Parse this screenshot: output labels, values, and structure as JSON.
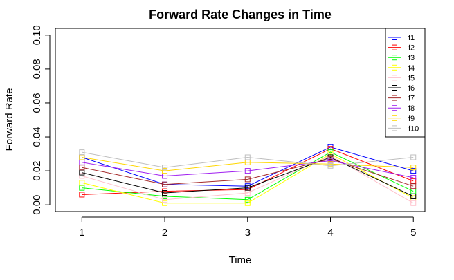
{
  "chart_data": {
    "type": "line",
    "title": "Forward Rate Changes in Time",
    "xlabel": "Time",
    "ylabel": "Forward Rate",
    "x": [
      1,
      2,
      3,
      4,
      5
    ],
    "xlim": [
      0.68,
      5.14
    ],
    "ylim": [
      -0.004,
      0.104
    ],
    "yticks": [
      "0.00",
      "0.02",
      "0.04",
      "0.06",
      "0.08",
      "0.10"
    ],
    "xticks": [
      "1",
      "2",
      "3",
      "4",
      "5"
    ],
    "grid": false,
    "legend_position": "top-right",
    "marker": "square-open",
    "series": [
      {
        "name": "f1",
        "color": "#0000ff",
        "values": [
          0.028,
          0.012,
          0.011,
          0.034,
          0.02
        ]
      },
      {
        "name": "f2",
        "color": "#ff0000",
        "values": [
          0.006,
          0.008,
          0.009,
          0.033,
          0.014
        ]
      },
      {
        "name": "f3",
        "color": "#00ff00",
        "values": [
          0.01,
          0.005,
          0.003,
          0.031,
          0.008
        ]
      },
      {
        "name": "f4",
        "color": "#ffff00",
        "values": [
          0.013,
          0.001,
          0.001,
          0.03,
          0.004
        ]
      },
      {
        "name": "f5",
        "color": "#ffc0cb",
        "values": [
          0.017,
          0.003,
          0.007,
          0.029,
          0.001
        ]
      },
      {
        "name": "f6",
        "color": "#000000",
        "values": [
          0.019,
          0.007,
          0.01,
          0.028,
          0.005
        ]
      },
      {
        "name": "f7",
        "color": "#a52a2a",
        "values": [
          0.022,
          0.012,
          0.015,
          0.027,
          0.011
        ]
      },
      {
        "name": "f8",
        "color": "#a020f0",
        "values": [
          0.025,
          0.017,
          0.02,
          0.026,
          0.016
        ]
      },
      {
        "name": "f9",
        "color": "#ffd700",
        "values": [
          0.028,
          0.02,
          0.025,
          0.024,
          0.022
        ]
      },
      {
        "name": "f10",
        "color": "#bebebe",
        "values": [
          0.031,
          0.022,
          0.028,
          0.023,
          0.028
        ]
      }
    ]
  }
}
